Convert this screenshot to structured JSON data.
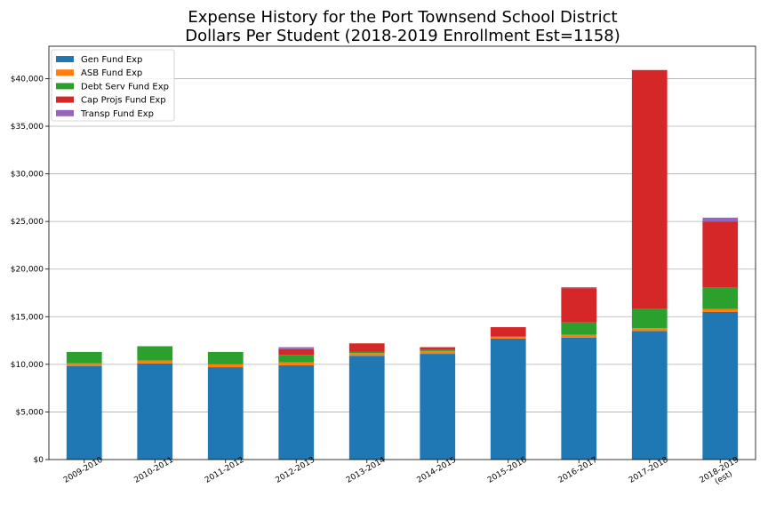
{
  "chart_data": {
    "type": "bar",
    "stacked": true,
    "title_lines": [
      "Expense History for the Port Townsend School District",
      "Dollars Per Student (2018-2019 Enrollment Est=1158)"
    ],
    "xlabel": "",
    "ylabel": "",
    "categories": [
      "2009-2010",
      "2010-2011",
      "2011-2012",
      "2012-2013",
      "2013-2014",
      "2014-2015",
      "2015-2016",
      "2016-2017",
      "2017-2018",
      "2018-2019\n(est)"
    ],
    "ylim": [
      0,
      43400
    ],
    "yticks": [
      0,
      5000,
      10000,
      15000,
      20000,
      25000,
      30000,
      35000,
      40000
    ],
    "ytick_labels": [
      "$0",
      "$5,000",
      "$10,000",
      "$15,000",
      "$20,000",
      "$25,000",
      "$30,000",
      "$35,000",
      "$40,000"
    ],
    "grid": "horizontal",
    "legend_position": "top-left",
    "series": [
      {
        "name": "Gen Fund Exp",
        "color": "#1f77b4",
        "values": [
          9800,
          10100,
          9700,
          9900,
          10900,
          11100,
          12700,
          12800,
          13500,
          15500
        ]
      },
      {
        "name": "ASB Fund Exp",
        "color": "#ff7f0e",
        "values": [
          300,
          300,
          300,
          300,
          300,
          300,
          200,
          300,
          300,
          300
        ]
      },
      {
        "name": "Debt Serv Fund Exp",
        "color": "#2ca02c",
        "values": [
          1200,
          1500,
          1300,
          800,
          100,
          100,
          0,
          1300,
          2000,
          2300
        ]
      },
      {
        "name": "Cap Projs Fund Exp",
        "color": "#d62728",
        "values": [
          0,
          0,
          0,
          600,
          900,
          300,
          1000,
          3600,
          25100,
          6900
        ]
      },
      {
        "name": "Transp Fund Exp",
        "color": "#9467bd",
        "values": [
          0,
          0,
          0,
          200,
          0,
          0,
          0,
          100,
          0,
          400
        ]
      }
    ]
  }
}
